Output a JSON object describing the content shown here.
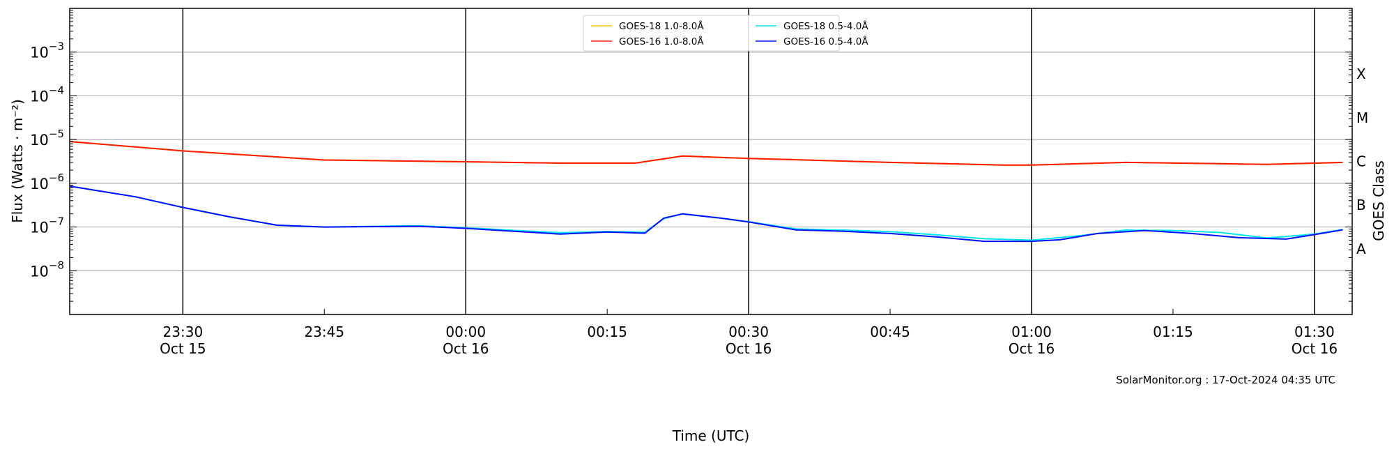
{
  "chart_data": {
    "type": "line",
    "xlabel": "Time (UTC)",
    "ylabel": "Flux (Watts · m⁻²)",
    "ylabel_right": "GOES Class",
    "yscale": "log",
    "ylim": [
      1e-09,
      0.01
    ],
    "xlim": [
      "2024-10-15T23:18",
      "2024-10-16T01:34"
    ],
    "grid": "horizontal at decades",
    "legend_placement": "top-center",
    "y_ticks": [
      {
        "value": 0.001,
        "base": "10",
        "exp": "−3"
      },
      {
        "value": 0.0001,
        "base": "10",
        "exp": "−4"
      },
      {
        "value": 1e-05,
        "base": "10",
        "exp": "−5"
      },
      {
        "value": 1e-06,
        "base": "10",
        "exp": "−6"
      },
      {
        "value": 1e-07,
        "base": "10",
        "exp": "−7"
      },
      {
        "value": 1e-08,
        "base": "10",
        "exp": "−8"
      }
    ],
    "x_ticks": [
      {
        "t": "2024-10-15T23:30",
        "time": "23:30",
        "date": "Oct 15",
        "vline": true
      },
      {
        "t": "2024-10-15T23:45",
        "time": "23:45",
        "date": ""
      },
      {
        "t": "2024-10-16T00:00",
        "time": "00:00",
        "date": "Oct 16",
        "vline": true
      },
      {
        "t": "2024-10-16T00:15",
        "time": "00:15",
        "date": ""
      },
      {
        "t": "2024-10-16T00:30",
        "time": "00:30",
        "date": "Oct 16",
        "vline": true
      },
      {
        "t": "2024-10-16T00:45",
        "time": "00:45",
        "date": ""
      },
      {
        "t": "2024-10-16T01:00",
        "time": "01:00",
        "date": "Oct 16",
        "vline": true
      },
      {
        "t": "2024-10-16T01:15",
        "time": "01:15",
        "date": ""
      },
      {
        "t": "2024-10-16T01:30",
        "time": "01:30",
        "date": "Oct 16",
        "vline": true
      }
    ],
    "goes_classes": [
      {
        "label": "X",
        "value": 0.000316
      },
      {
        "label": "M",
        "value": 3.16e-05
      },
      {
        "label": "C",
        "value": 3.16e-06
      },
      {
        "label": "B",
        "value": 3.16e-07
      },
      {
        "label": "A",
        "value": 3.16e-08
      }
    ],
    "watermark": "SolarMonitor.org : 17-Oct-2024 04:35 UTC",
    "series": [
      {
        "name": "GOES-18 1.0-8.0Å",
        "color": "#ffc000",
        "x": [
          "2024-10-15T23:18",
          "2024-10-15T23:30",
          "2024-10-15T23:45",
          "2024-10-16T00:00",
          "2024-10-16T00:10",
          "2024-10-16T00:18",
          "2024-10-16T00:23",
          "2024-10-16T00:30",
          "2024-10-16T00:45",
          "2024-10-16T00:57",
          "2024-10-16T01:00",
          "2024-10-16T01:10",
          "2024-10-16T01:20",
          "2024-10-16T01:25",
          "2024-10-16T01:33"
        ],
        "y": [
          9e-06,
          5.5e-06,
          3.4e-06,
          3.1e-06,
          2.9e-06,
          2.9e-06,
          4.2e-06,
          3.7e-06,
          3e-06,
          2.6e-06,
          2.6e-06,
          3e-06,
          2.8e-06,
          2.7e-06,
          3e-06
        ]
      },
      {
        "name": "GOES-16 1.0-8.0Å",
        "color": "#ff1a00",
        "x": [
          "2024-10-15T23:18",
          "2024-10-15T23:30",
          "2024-10-15T23:45",
          "2024-10-16T00:00",
          "2024-10-16T00:10",
          "2024-10-16T00:18",
          "2024-10-16T00:23",
          "2024-10-16T00:30",
          "2024-10-16T00:45",
          "2024-10-16T00:57",
          "2024-10-16T01:00",
          "2024-10-16T01:10",
          "2024-10-16T01:20",
          "2024-10-16T01:25",
          "2024-10-16T01:33"
        ],
        "y": [
          9e-06,
          5.5e-06,
          3.4e-06,
          3.1e-06,
          2.9e-06,
          2.9e-06,
          4.2e-06,
          3.7e-06,
          3e-06,
          2.6e-06,
          2.6e-06,
          3e-06,
          2.8e-06,
          2.7e-06,
          3e-06
        ]
      },
      {
        "name": "GOES-18 0.5-4.0Å",
        "color": "#00e5ee",
        "x": [
          "2024-10-15T23:18",
          "2024-10-15T23:25",
          "2024-10-15T23:30",
          "2024-10-15T23:35",
          "2024-10-15T23:40",
          "2024-10-15T23:45",
          "2024-10-15T23:55",
          "2024-10-16T00:00",
          "2024-10-16T00:05",
          "2024-10-16T00:10",
          "2024-10-16T00:15",
          "2024-10-16T00:19",
          "2024-10-16T00:21",
          "2024-10-16T00:23",
          "2024-10-16T00:27",
          "2024-10-16T00:30",
          "2024-10-16T00:35",
          "2024-10-16T00:40",
          "2024-10-16T00:45",
          "2024-10-16T00:50",
          "2024-10-16T00:55",
          "2024-10-16T01:00",
          "2024-10-16T01:05",
          "2024-10-16T01:10",
          "2024-10-16T01:15",
          "2024-10-16T01:20",
          "2024-10-16T01:25",
          "2024-10-16T01:30",
          "2024-10-16T01:33"
        ],
        "y": [
          8.6e-07,
          4.9e-07,
          2.8e-07,
          1.7e-07,
          1.1e-07,
          1e-07,
          1.07e-07,
          9.6e-08,
          8.4e-08,
          7.4e-08,
          7.9e-08,
          7.6e-08,
          1.55e-07,
          2e-07,
          1.6e-07,
          1.32e-07,
          9e-08,
          8.5e-08,
          7.8e-08,
          6.6e-08,
          5.4e-08,
          5e-08,
          6.3e-08,
          8.5e-08,
          8.3e-08,
          7.5e-08,
          5.6e-08,
          6.9e-08,
          8.8e-08
        ]
      },
      {
        "name": "GOES-16 0.5-4.0Å",
        "color": "#0010ff",
        "x": [
          "2024-10-15T23:18",
          "2024-10-15T23:25",
          "2024-10-15T23:30",
          "2024-10-15T23:35",
          "2024-10-15T23:40",
          "2024-10-15T23:45",
          "2024-10-15T23:55",
          "2024-10-16T00:00",
          "2024-10-16T00:05",
          "2024-10-16T00:10",
          "2024-10-16T00:15",
          "2024-10-16T00:19",
          "2024-10-16T00:21",
          "2024-10-16T00:23",
          "2024-10-16T00:27",
          "2024-10-16T00:30",
          "2024-10-16T00:35",
          "2024-10-16T00:40",
          "2024-10-16T00:45",
          "2024-10-16T00:50",
          "2024-10-16T00:55",
          "2024-10-16T01:00",
          "2024-10-16T01:03",
          "2024-10-16T01:07",
          "2024-10-16T01:12",
          "2024-10-16T01:17",
          "2024-10-16T01:22",
          "2024-10-16T01:27",
          "2024-10-16T01:30",
          "2024-10-16T01:33"
        ],
        "y": [
          8.6e-07,
          4.9e-07,
          2.8e-07,
          1.7e-07,
          1.1e-07,
          1e-07,
          1.04e-07,
          9.3e-08,
          8e-08,
          6.9e-08,
          7.7e-08,
          7.2e-08,
          1.6e-07,
          2e-07,
          1.6e-07,
          1.3e-07,
          8.6e-08,
          8e-08,
          7.1e-08,
          5.9e-08,
          4.7e-08,
          4.7e-08,
          5.1e-08,
          7.1e-08,
          8.3e-08,
          7.1e-08,
          5.7e-08,
          5.3e-08,
          6.7e-08,
          8.6e-08
        ]
      }
    ]
  }
}
